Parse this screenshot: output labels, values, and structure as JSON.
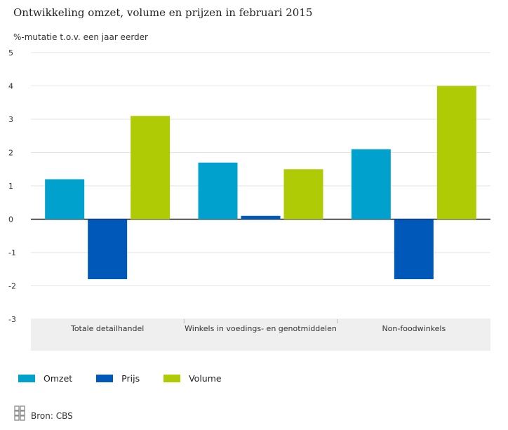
{
  "chart_data": {
    "type": "bar",
    "title": "Ontwikkeling omzet, volume en prijzen in februari 2015",
    "ylabel": "%-mutatie t.o.v. een jaar eerder",
    "xlabel": "",
    "ylim": [
      -3,
      5
    ],
    "yticks": [
      "5",
      "4",
      "3",
      "2",
      "1",
      "0",
      "-1",
      "-2",
      "-3"
    ],
    "grid": true,
    "legend_position": "bottom-left",
    "categories": [
      "Totale detailhandel",
      "Winkels in voedings- en genotmiddelen",
      "Non-foodwinkels"
    ],
    "series": [
      {
        "name": "Omzet",
        "color": "#00a1cd",
        "values": [
          1.2,
          1.7,
          2.1
        ]
      },
      {
        "name": "Prijs",
        "color": "#0058b8",
        "values": [
          -1.8,
          0.1,
          -1.8
        ]
      },
      {
        "name": "Volume",
        "color": "#afcb05",
        "values": [
          3.1,
          1.5,
          4.0
        ]
      }
    ]
  },
  "source": {
    "text": "Bron: CBS"
  }
}
